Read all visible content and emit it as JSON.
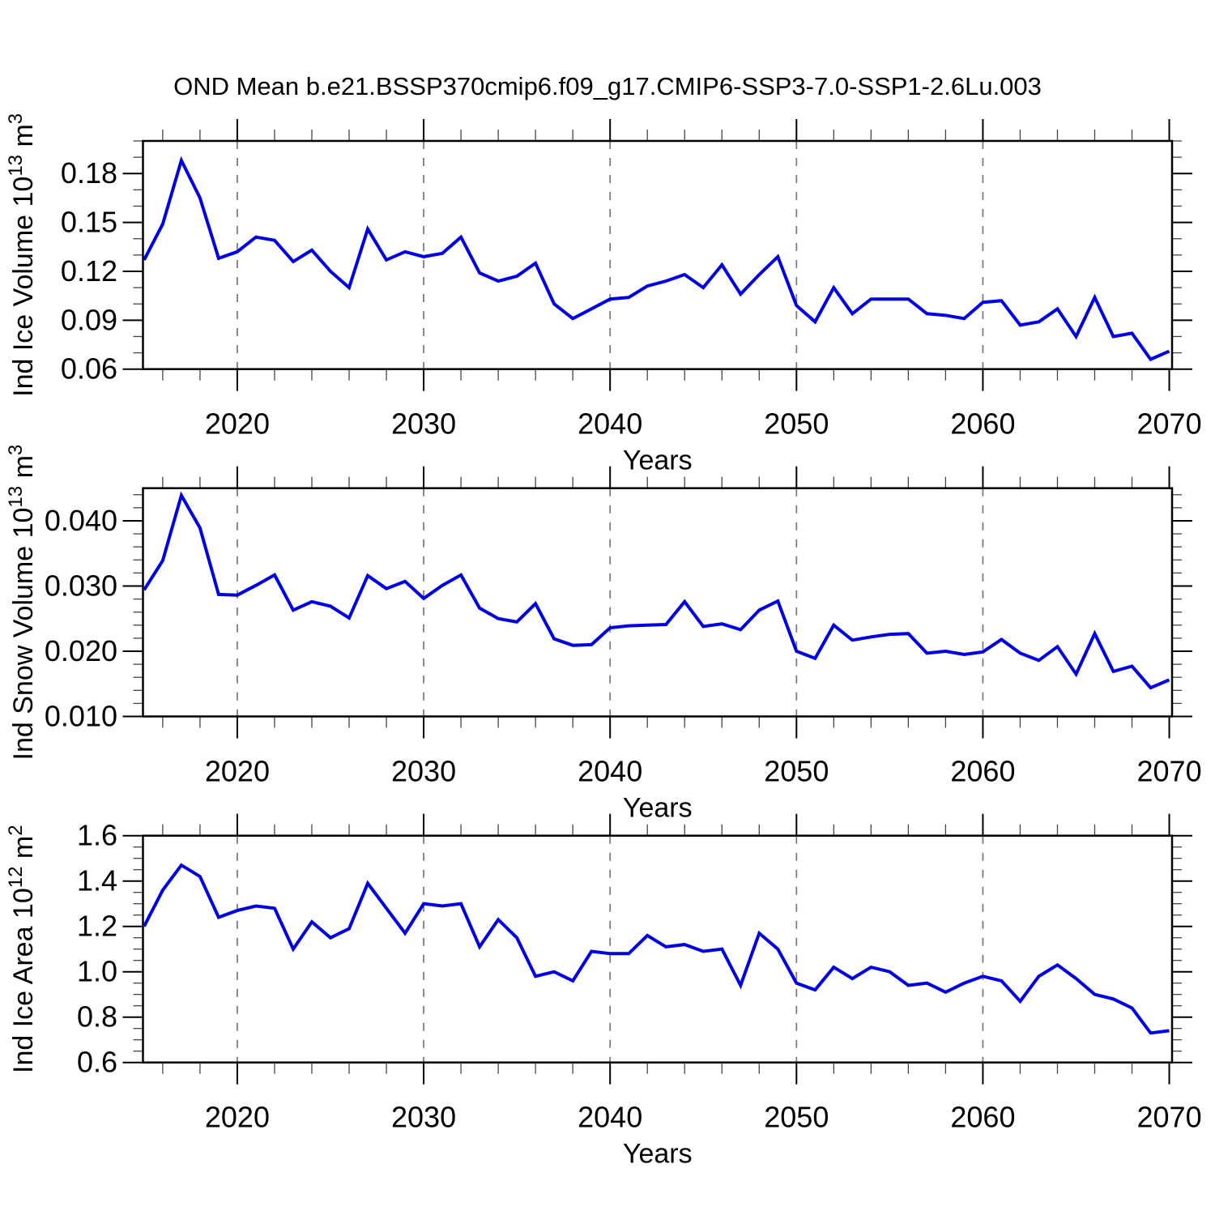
{
  "title": "OND Mean b.e21.BSSP370cmip6.f09_g17.CMIP6-SSP3-7.0-SSP1-2.6Lu.003",
  "colors": {
    "line": "#0000e6",
    "frame": "#000000",
    "grid": "#7d7d7d",
    "minor_tick": "#444444",
    "background": "#ffffff",
    "text": "#000000"
  },
  "x_axis": {
    "label": "Years",
    "min": 2014.94,
    "max": 2070.15,
    "major_ticks": [
      2020,
      2030,
      2040,
      2050,
      2060,
      2070
    ],
    "major_tick_labels": [
      "2020",
      "2030",
      "2040",
      "2050",
      "2060",
      "2070"
    ],
    "minor_start": 2016,
    "minor_step": 2,
    "grid_lines": [
      2020,
      2030,
      2040,
      2050,
      2060
    ]
  },
  "years": [
    2015,
    2016,
    2017,
    2018,
    2019,
    2020,
    2021,
    2022,
    2023,
    2024,
    2025,
    2026,
    2027,
    2028,
    2029,
    2030,
    2031,
    2032,
    2033,
    2034,
    2035,
    2036,
    2037,
    2038,
    2039,
    2040,
    2041,
    2042,
    2043,
    2044,
    2045,
    2046,
    2047,
    2048,
    2049,
    2050,
    2051,
    2052,
    2053,
    2054,
    2055,
    2056,
    2057,
    2058,
    2059,
    2060,
    2061,
    2062,
    2063,
    2064,
    2065,
    2066,
    2067,
    2068,
    2069,
    2070
  ],
  "chart_data": [
    {
      "type": "line",
      "name": "ind-ice-volume",
      "ylabel": "Ind Ice Volume 10^13 m^3",
      "ylabel_parts": [
        {
          "t": "Ind Ice Volume 10"
        },
        {
          "t": "13",
          "sup": true
        },
        {
          "t": " m"
        },
        {
          "t": "3",
          "sup": true
        }
      ],
      "ylim": [
        0.06,
        0.2
      ],
      "yticks": [
        0.06,
        0.09,
        0.12,
        0.15,
        0.18
      ],
      "ytick_labels": [
        "0.06",
        "0.09",
        "0.12",
        "0.15",
        "0.18"
      ],
      "minor_step": 0.01,
      "values": [
        0.127,
        0.149,
        0.188,
        0.165,
        0.128,
        0.132,
        0.141,
        0.139,
        0.126,
        0.133,
        0.12,
        0.11,
        0.146,
        0.127,
        0.132,
        0.129,
        0.131,
        0.141,
        0.119,
        0.114,
        0.117,
        0.125,
        0.1,
        0.091,
        0.097,
        0.103,
        0.104,
        0.111,
        0.114,
        0.118,
        0.11,
        0.124,
        0.106,
        0.118,
        0.129,
        0.099,
        0.089,
        0.11,
        0.094,
        0.103,
        0.103,
        0.103,
        0.094,
        0.093,
        0.091,
        0.101,
        0.102,
        0.087,
        0.089,
        0.097,
        0.08,
        0.104,
        0.08,
        0.082,
        0.066,
        0.071
      ]
    },
    {
      "type": "line",
      "name": "ind-snow-volume",
      "ylabel": "Ind Snow Volume 10^13 m^3",
      "ylabel_parts": [
        {
          "t": "Ind Snow Volume 10"
        },
        {
          "t": "13",
          "sup": true
        },
        {
          "t": " m"
        },
        {
          "t": "3",
          "sup": true
        }
      ],
      "ylim": [
        0.01,
        0.045
      ],
      "yticks": [
        0.01,
        0.02,
        0.03,
        0.04
      ],
      "ytick_labels": [
        "0.010",
        "0.020",
        "0.030",
        "0.040"
      ],
      "minor_step": 0.002,
      "values": [
        0.0294,
        0.0339,
        0.0439,
        0.0389,
        0.0287,
        0.0286,
        0.0301,
        0.0317,
        0.0263,
        0.0276,
        0.0269,
        0.0251,
        0.0316,
        0.0296,
        0.0307,
        0.0281,
        0.0301,
        0.0317,
        0.0266,
        0.025,
        0.0245,
        0.0273,
        0.0219,
        0.0209,
        0.021,
        0.0236,
        0.0239,
        0.024,
        0.0241,
        0.0276,
        0.0238,
        0.0242,
        0.0233,
        0.0263,
        0.0277,
        0.02,
        0.0189,
        0.024,
        0.0217,
        0.0222,
        0.0226,
        0.0227,
        0.0197,
        0.02,
        0.0195,
        0.0199,
        0.0218,
        0.0197,
        0.0186,
        0.0207,
        0.0165,
        0.0227,
        0.0169,
        0.0177,
        0.0144,
        0.0156
      ]
    },
    {
      "type": "line",
      "name": "ind-ice-area",
      "ylabel": "Ind Ice Area 10^12 m^2",
      "ylabel_parts": [
        {
          "t": "Ind Ice Area 10"
        },
        {
          "t": "12",
          "sup": true
        },
        {
          "t": " m"
        },
        {
          "t": "2",
          "sup": true
        }
      ],
      "ylim": [
        0.6,
        1.6
      ],
      "yticks": [
        0.6,
        0.8,
        1.0,
        1.2,
        1.4,
        1.6
      ],
      "ytick_labels": [
        "0.6",
        "0.8",
        "1.0",
        "1.2",
        "1.4",
        "1.6"
      ],
      "minor_step": 0.05,
      "values": [
        1.2,
        1.36,
        1.47,
        1.42,
        1.24,
        1.27,
        1.29,
        1.28,
        1.1,
        1.22,
        1.15,
        1.19,
        1.39,
        1.28,
        1.17,
        1.3,
        1.29,
        1.3,
        1.11,
        1.23,
        1.15,
        0.98,
        1.0,
        0.96,
        1.09,
        1.08,
        1.08,
        1.16,
        1.11,
        1.12,
        1.09,
        1.1,
        0.94,
        1.17,
        1.1,
        0.95,
        0.92,
        1.02,
        0.97,
        1.02,
        1.0,
        0.94,
        0.95,
        0.91,
        0.95,
        0.98,
        0.96,
        0.87,
        0.98,
        1.03,
        0.97,
        0.9,
        0.88,
        0.84,
        0.73,
        0.74
      ]
    }
  ]
}
